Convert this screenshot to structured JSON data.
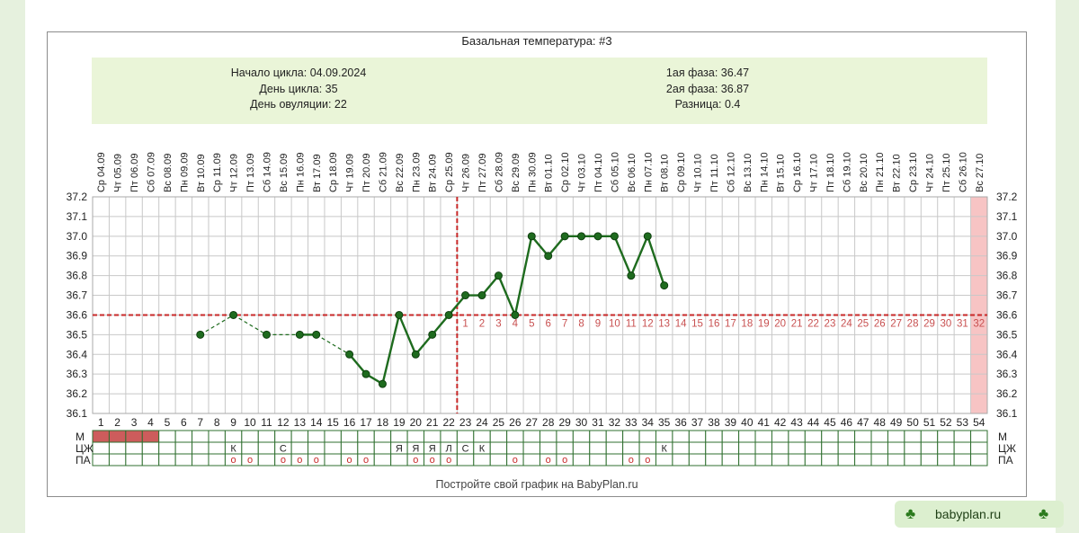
{
  "chart_data": {
    "type": "line",
    "title": "Базальная температура: #3",
    "info": {
      "cycle_start": "Начало цикла: 04.09.2024",
      "cycle_day": "День цикла: 35",
      "ovulation_day": "День овуляции: 22",
      "phase1": "1ая фаза: 36.47",
      "phase2": "2ая фаза: 36.87",
      "difference": "Разница: 0.4"
    },
    "dates": [
      "Ср 04.09",
      "Чт 05.09",
      "Пт 06.09",
      "Сб 07.09",
      "Вс 08.09",
      "Пн 09.09",
      "Вт 10.09",
      "Ср 11.09",
      "Чт 12.09",
      "Пт 13.09",
      "Сб 14.09",
      "Вс 15.09",
      "Пн 16.09",
      "Вт 17.09",
      "Ср 18.09",
      "Чт 19.09",
      "Пт 20.09",
      "Сб 21.09",
      "Вс 22.09",
      "Пн 23.09",
      "Вт 24.09",
      "Ср 25.09",
      "Чт 26.09",
      "Пт 27.09",
      "Сб 28.09",
      "Вс 29.09",
      "Пн 30.09",
      "Вт 01.10",
      "Ср 02.10",
      "Чт 03.10",
      "Пт 04.10",
      "Сб 05.10",
      "Вс 06.10",
      "Пн 07.10",
      "Вт 08.10",
      "Ср 09.10",
      "Чт 10.10",
      "Пт 11.10",
      "Сб 12.10",
      "Вс 13.10",
      "Пн 14.10",
      "Вт 15.10",
      "Ср 16.10",
      "Чт 17.10",
      "Пт 18.10",
      "Сб 19.10",
      "Вс 20.10",
      "Пн 21.10",
      "Вт 22.10",
      "Ср 23.10",
      "Чт 24.10",
      "Пт 25.10",
      "Сб 26.10",
      "Вс 27.10"
    ],
    "x": [
      1,
      2,
      3,
      4,
      5,
      6,
      7,
      8,
      9,
      10,
      11,
      12,
      13,
      14,
      15,
      16,
      17,
      18,
      19,
      20,
      21,
      22,
      23,
      24,
      25,
      26,
      27,
      28,
      29,
      30,
      31,
      32,
      33,
      34,
      35,
      36,
      37,
      38,
      39,
      40,
      41,
      42,
      43,
      44,
      45,
      46,
      47,
      48,
      49,
      50,
      51,
      52,
      53,
      54
    ],
    "y_ticks": [
      "36.1",
      "36.2",
      "36.3",
      "36.4",
      "36.5",
      "36.6",
      "36.7",
      "36.8",
      "36.9",
      "37.0",
      "37.1",
      "37.2"
    ],
    "ylim": [
      36.1,
      37.2
    ],
    "series": [
      {
        "values": [
          null,
          null,
          null,
          null,
          null,
          null,
          36.5,
          null,
          36.6,
          null,
          36.5,
          null,
          36.5,
          36.5,
          null,
          36.4,
          36.3,
          36.25,
          36.6,
          36.4,
          36.5,
          36.6,
          36.7,
          36.7,
          36.8,
          36.6,
          37.0,
          36.9,
          37.0,
          37.0,
          37.0,
          37.0,
          36.8,
          37.0,
          36.75,
          null,
          null,
          null,
          null,
          null,
          null,
          null,
          null,
          null,
          null,
          null,
          null,
          null,
          null,
          null,
          null,
          null,
          null,
          null
        ],
        "color": "#1e6b1e",
        "marker": "circle"
      }
    ],
    "coverline": 36.6,
    "ovulation_day": 22,
    "phase_day_labels": [
      "1",
      "2",
      "3",
      "4",
      "5",
      "6",
      "7",
      "8",
      "9",
      "10",
      "11",
      "12",
      "13",
      "14",
      "15",
      "16",
      "17",
      "18",
      "19",
      "20",
      "21",
      "22",
      "23",
      "24",
      "25",
      "26",
      "27",
      "28",
      "29",
      "30",
      "31",
      "32"
    ],
    "highlight_day": 54,
    "rows": {
      "labels": [
        "М",
        "ЦЖ",
        "ПА"
      ],
      "menstruation_days": [
        1,
        2,
        3,
        4
      ],
      "cervical": [
        {
          "day": 9,
          "text": "К"
        },
        {
          "day": 12,
          "text": "С"
        },
        {
          "day": 19,
          "text": "Я"
        },
        {
          "day": 20,
          "text": "Я"
        },
        {
          "day": 21,
          "text": "Я"
        },
        {
          "day": 22,
          "text": "Л"
        },
        {
          "day": 23,
          "text": "С"
        },
        {
          "day": 24,
          "text": "К"
        },
        {
          "day": 35,
          "text": "К"
        }
      ],
      "intercourse_days": [
        9,
        10,
        12,
        13,
        14,
        16,
        17,
        20,
        21,
        22,
        26,
        28,
        29,
        33,
        34
      ],
      "intercourse_mark": "o"
    },
    "colors": {
      "line": "#1e6b1e",
      "coverline": "#c82828",
      "phase_label": "#c85050",
      "menstruation": "#cd5c5c",
      "highlight": "#f7c4c4",
      "grid": "#c8c8c8"
    },
    "grid": true
  },
  "footer": "Постройте свой график на BabyPlan.ru",
  "badge": {
    "text": "babyplan.ru",
    "icon": "clover-icon"
  }
}
